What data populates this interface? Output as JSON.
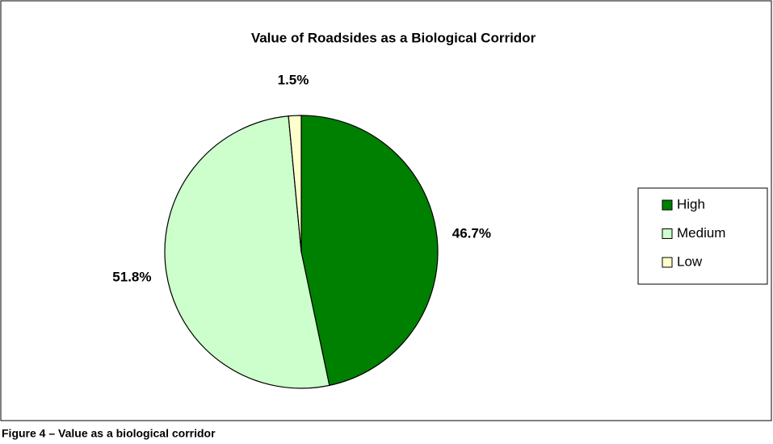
{
  "chart_data": {
    "type": "pie",
    "title": "Value of Roadsides as a Biological Corridor",
    "categories": [
      "High",
      "Medium",
      "Low"
    ],
    "values": [
      46.7,
      51.8,
      1.5
    ],
    "value_labels": [
      "46.7%",
      "51.8%",
      "1.5%"
    ],
    "colors": [
      "#008000",
      "#ccffcc",
      "#ffffcc"
    ],
    "legend": "right",
    "caption": "Figure 4 – Value as a biological corridor"
  }
}
